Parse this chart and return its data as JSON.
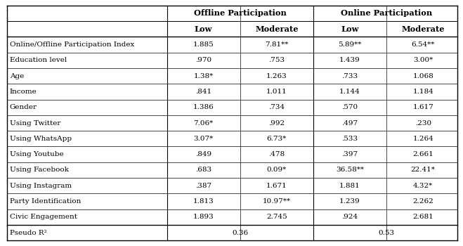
{
  "col_headers_level1": [
    "Offline Participation",
    "Online Participation"
  ],
  "col_headers_level2": [
    "Low",
    "Moderate",
    "Low",
    "Moderate"
  ],
  "rows": [
    [
      "Online/Offline Participation Index",
      "1.885",
      "7.81**",
      "5.89**",
      "6.54**"
    ],
    [
      "Education level",
      ".970",
      ".753",
      "1.439",
      "3.00*"
    ],
    [
      "Age",
      "1.38*",
      "1.263",
      ".733",
      "1.068"
    ],
    [
      "Income",
      ".841",
      "1.011",
      "1.144",
      "1.184"
    ],
    [
      "Gender",
      "1.386",
      ".734",
      ".570",
      "1.617"
    ],
    [
      "Using Twitter",
      "7.06*",
      ".992",
      ".497",
      ".230"
    ],
    [
      "Using WhatsApp",
      "3.07*",
      "6.73*",
      ".533",
      "1.264"
    ],
    [
      "Using Youtube",
      ".849",
      ".478",
      ".397",
      "2.661"
    ],
    [
      "Using Facebook",
      ".683",
      "0.09*",
      "36.58**",
      "22.41*"
    ],
    [
      "Using Instagram",
      ".387",
      "1.671",
      "1.881",
      "4.32*"
    ],
    [
      "Party Identification",
      "1.813",
      "10.97**",
      "1.239",
      "2.262"
    ],
    [
      "Civic Engagement",
      "1.893",
      "2.745",
      ".924",
      "2.681"
    ],
    [
      "Pseudo R²",
      "0.36",
      "0.53"
    ]
  ],
  "background_color": "#ffffff",
  "text_color": "#000000",
  "font_size": 7.5,
  "header_font_size": 8.2
}
